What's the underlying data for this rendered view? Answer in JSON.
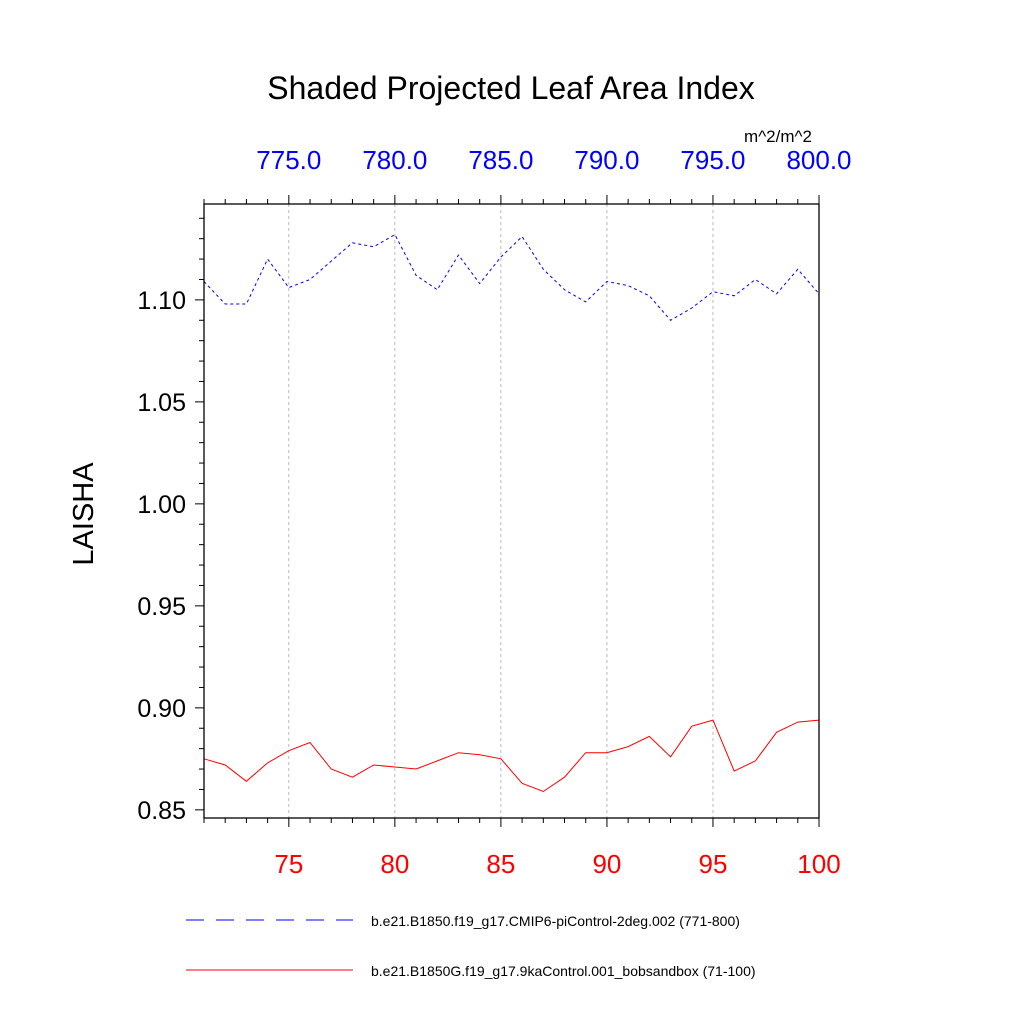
{
  "chart_data": {
    "type": "line",
    "title": "Shaded Projected Leaf Area Index",
    "units": "m^2/m^2",
    "ylabel": "LAISHA",
    "ylim": [
      0.846,
      1.147
    ],
    "y_ticks": [
      0.85,
      0.9,
      0.95,
      1.0,
      1.05,
      1.1
    ],
    "y_tick_labels": [
      "0.85",
      "0.90",
      "0.95",
      "1.00",
      "1.05",
      "1.10"
    ],
    "x_bottom": {
      "range": [
        71,
        100
      ],
      "ticks": [
        75,
        80,
        85,
        90,
        95,
        100
      ],
      "tick_labels": [
        "75",
        "80",
        "85",
        "90",
        "95",
        "100"
      ],
      "color": "#ff0000"
    },
    "x_top": {
      "range": [
        771,
        800
      ],
      "ticks": [
        775,
        780,
        785,
        790,
        795,
        800
      ],
      "tick_labels": [
        "775.0",
        "780.0",
        "785.0",
        "790.0",
        "795.0",
        "800.0"
      ],
      "color": "#0000ff"
    },
    "grid": "vertical dashed at major x ticks",
    "series": [
      {
        "name": "b.e21.B1850.f19_g17.CMIP6-piControl-2deg.002 (771-800)",
        "axis": "top",
        "color": "#0000ff",
        "dash": "dashed",
        "x": [
          771,
          772,
          773,
          774,
          775,
          776,
          777,
          778,
          779,
          780,
          781,
          782,
          783,
          784,
          785,
          786,
          787,
          788,
          789,
          790,
          791,
          792,
          793,
          794,
          795,
          796,
          797,
          798,
          799,
          800
        ],
        "values": [
          1.109,
          1.098,
          1.098,
          1.12,
          1.106,
          1.11,
          1.119,
          1.128,
          1.126,
          1.132,
          1.112,
          1.105,
          1.122,
          1.108,
          1.121,
          1.131,
          1.115,
          1.105,
          1.099,
          1.109,
          1.107,
          1.102,
          1.09,
          1.096,
          1.104,
          1.102,
          1.11,
          1.103,
          1.115,
          1.103
        ]
      },
      {
        "name": "b.e21.B1850G.f19_g17.9kaControl.001_bobsandbox (71-100)",
        "axis": "bottom",
        "color": "#ff0000",
        "dash": "solid",
        "x": [
          71,
          72,
          73,
          74,
          75,
          76,
          77,
          78,
          79,
          80,
          81,
          82,
          83,
          84,
          85,
          86,
          87,
          88,
          89,
          90,
          91,
          92,
          93,
          94,
          95,
          96,
          97,
          98,
          99,
          100
        ],
        "values": [
          0.875,
          0.872,
          0.864,
          0.873,
          0.879,
          0.883,
          0.87,
          0.866,
          0.872,
          0.871,
          0.87,
          0.874,
          0.878,
          0.877,
          0.875,
          0.863,
          0.859,
          0.866,
          0.878,
          0.878,
          0.881,
          0.886,
          0.876,
          0.891,
          0.894,
          0.869,
          0.874,
          0.888,
          0.893,
          0.894
        ]
      }
    ]
  }
}
